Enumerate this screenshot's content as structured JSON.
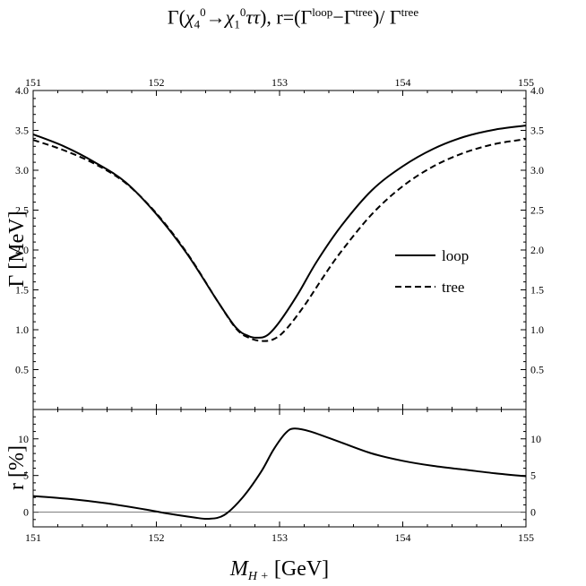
{
  "title": {
    "gamma": "Γ(",
    "chi": "χ",
    "chi_sub1": "4",
    "chi_sup1": "0",
    "arrow": "→",
    "chi_sub2": "1",
    "chi_sup2": "0",
    "tautau": "ττ",
    "sep": "),  r=(Γ",
    "sup_loop": "loop",
    "minus": "−Γ",
    "sup_tree1": "tree",
    "div": ")/ Γ",
    "sup_tree2": "tree"
  },
  "legend": {
    "loop": "loop",
    "tree": "tree"
  },
  "chart_data": [
    {
      "type": "line",
      "panel": "top",
      "ylabel": "Γ [MeV]",
      "xlim": [
        151,
        155
      ],
      "ylim": [
        0,
        4.0
      ],
      "x_ticks": [
        151,
        152,
        153,
        154,
        155
      ],
      "y_ticks": [
        0.5,
        1.0,
        1.5,
        2.0,
        2.5,
        3.0,
        3.5,
        4.0
      ],
      "y_tick_labels": [
        "0.5",
        "1.0",
        "1.5",
        "2.0",
        "2.5",
        "3.0",
        "3.5",
        "4.0"
      ],
      "legend_position": "right",
      "series": [
        {
          "name": "loop",
          "style": "solid",
          "x": [
            151.0,
            151.25,
            151.5,
            151.75,
            152.0,
            152.25,
            152.5,
            152.65,
            152.75,
            152.82,
            152.9,
            153.0,
            153.15,
            153.3,
            153.5,
            153.75,
            154.0,
            154.25,
            154.5,
            154.75,
            155.0
          ],
          "y": [
            3.45,
            3.3,
            3.1,
            2.85,
            2.45,
            1.95,
            1.35,
            1.02,
            0.92,
            0.9,
            0.93,
            1.1,
            1.45,
            1.85,
            2.3,
            2.75,
            3.05,
            3.27,
            3.42,
            3.51,
            3.56
          ]
        },
        {
          "name": "tree",
          "style": "dashed",
          "x": [
            151.0,
            151.25,
            151.5,
            151.75,
            152.0,
            152.25,
            152.5,
            152.65,
            152.75,
            152.85,
            152.95,
            153.05,
            153.2,
            153.35,
            153.5,
            153.75,
            154.0,
            154.25,
            154.5,
            154.75,
            155.0
          ],
          "y": [
            3.38,
            3.25,
            3.08,
            2.84,
            2.46,
            1.96,
            1.35,
            1.01,
            0.9,
            0.86,
            0.88,
            1.0,
            1.3,
            1.65,
            1.98,
            2.45,
            2.8,
            3.05,
            3.22,
            3.33,
            3.39
          ]
        }
      ]
    },
    {
      "type": "line",
      "panel": "bottom",
      "xlabel": "M",
      "xlabel_sub": "H +",
      "xlabel_unit": " [GeV]",
      "ylabel": "r [%]",
      "xlim": [
        151,
        155
      ],
      "ylim": [
        -2,
        14
      ],
      "x_ticks": [
        151,
        152,
        153,
        154,
        155
      ],
      "y_ticks": [
        0,
        5,
        10
      ],
      "y_tick_labels": [
        "0",
        "5",
        "10"
      ],
      "zero_line": true,
      "series": [
        {
          "name": "r",
          "x": [
            151.0,
            151.3,
            151.6,
            151.9,
            152.1,
            152.3,
            152.42,
            152.55,
            152.7,
            152.85,
            152.95,
            153.05,
            153.12,
            153.25,
            153.5,
            153.75,
            154.0,
            154.25,
            154.5,
            154.75,
            155.0
          ],
          "y": [
            2.2,
            1.8,
            1.2,
            0.4,
            -0.2,
            -0.7,
            -0.9,
            -0.4,
            2.0,
            5.5,
            8.5,
            10.8,
            11.4,
            11.0,
            9.5,
            8.0,
            7.0,
            6.3,
            5.8,
            5.3,
            4.9
          ]
        }
      ]
    }
  ]
}
